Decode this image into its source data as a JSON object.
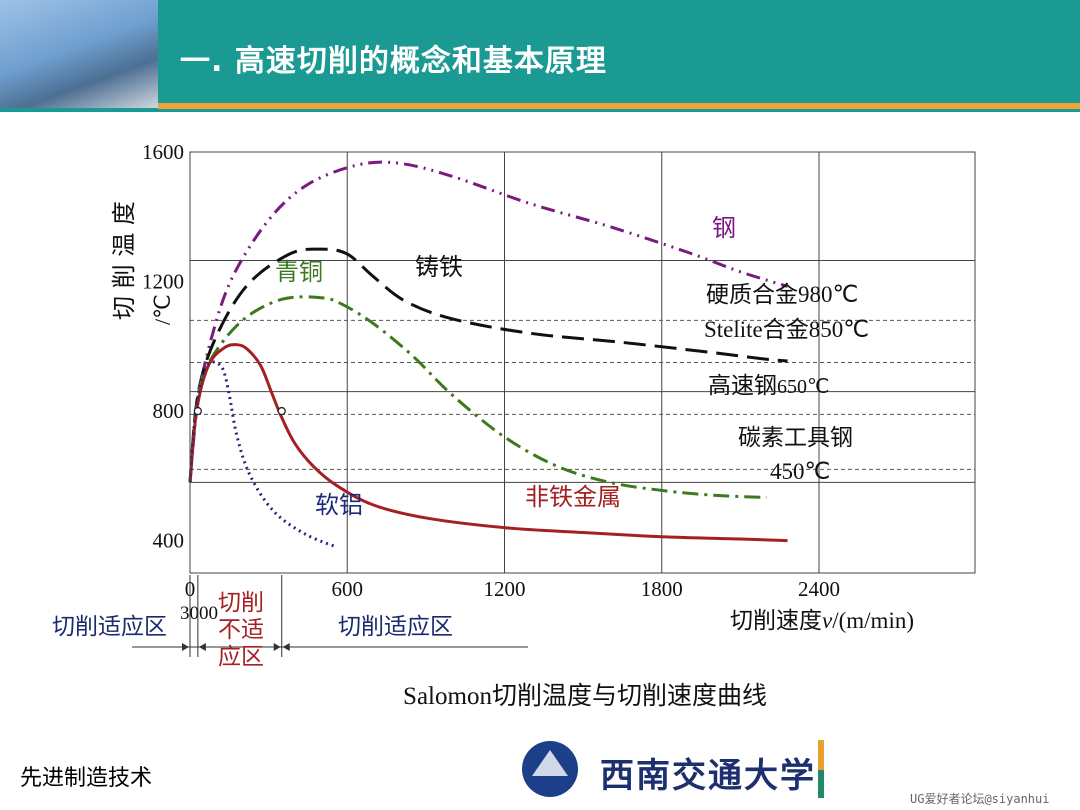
{
  "header": {
    "title": "一. 高速切削的概念和基本原理",
    "brand_color": "#1b9a93",
    "accent_color": "#f0a33a"
  },
  "chart_data": {
    "type": "line",
    "caption": "Salomon切削温度与切削速度曲线",
    "xlabel_text": "切削速度",
    "xlabel_var": "v",
    "xlabel_unit": "/(m/min)",
    "ylabel_text": "切 削 温 度",
    "ylabel_unit": "/℃",
    "xlim": [
      0,
      2400
    ],
    "ylim": [
      300,
      1600
    ],
    "x_ticks": [
      {
        "v": 0,
        "label": "0"
      },
      {
        "v": 600,
        "label": "600"
      },
      {
        "v": 1200,
        "label": "1200"
      },
      {
        "v": 1800,
        "label": "1800"
      },
      {
        "v": 2400,
        "label": "2400"
      }
    ],
    "x_extra_label": "3000",
    "y_ticks": [
      {
        "v": 1600,
        "label": "1600"
      },
      {
        "v": 1200,
        "label": "1200"
      },
      {
        "v": 800,
        "label": "800"
      },
      {
        "v": 400,
        "label": "400"
      }
    ],
    "grid": true,
    "series": [
      {
        "name": "钢",
        "color": "#7a1a80",
        "dash": "14 6 2 6 2 6",
        "x": [
          0,
          30,
          80,
          160,
          300,
          450,
          640,
          800,
          1000,
          1300,
          1600,
          1900,
          2100,
          2280
        ],
        "y": [
          580,
          830,
          1020,
          1210,
          1390,
          1500,
          1560,
          1565,
          1525,
          1440,
          1370,
          1290,
          1230,
          1185
        ]
      },
      {
        "name": "铸铁",
        "color": "#111111",
        "dash": "22 9",
        "x": [
          0,
          30,
          100,
          220,
          380,
          500,
          600,
          700,
          820,
          1000,
          1300,
          1650,
          2000,
          2200,
          2280
        ],
        "y": [
          580,
          850,
          1030,
          1190,
          1285,
          1300,
          1285,
          1215,
          1140,
          1085,
          1040,
          1012,
          980,
          960,
          955
        ]
      },
      {
        "name": "青铜",
        "color": "#3d7a1e",
        "dash": "16 6 3 6",
        "x": [
          0,
          30,
          80,
          200,
          350,
          500,
          580,
          700,
          850,
          1000,
          1200,
          1400,
          1600,
          1800,
          2000,
          2200
        ],
        "y": [
          580,
          840,
          960,
          1080,
          1145,
          1150,
          1130,
          1070,
          970,
          850,
          720,
          630,
          580,
          555,
          540,
          533
        ]
      },
      {
        "name": "非铁金属",
        "color": "#a52020",
        "dash": "",
        "x": [
          0,
          25,
          70,
          130,
          180,
          220,
          270,
          310,
          350,
          400,
          470,
          560,
          700,
          900,
          1200,
          1500,
          1800,
          2100,
          2280
        ],
        "y": [
          580,
          800,
          940,
          995,
          1005,
          990,
          940,
          860,
          780,
          700,
          630,
          570,
          510,
          470,
          440,
          425,
          412,
          405,
          400
        ]
      },
      {
        "name": "软铝",
        "color": "#1f2b7a",
        "dash": "2 4",
        "x": [
          0,
          20,
          50,
          80,
          110,
          130,
          150,
          180,
          230,
          320,
          440,
          560
        ],
        "y": [
          580,
          790,
          920,
          950,
          945,
          920,
          850,
          720,
          600,
          490,
          420,
          380
        ]
      }
    ],
    "references": [
      {
        "label": "硬质合金",
        "temp_text": "980℃",
        "y": 1080
      },
      {
        "label": "Stelite合金",
        "temp_text": "850℃",
        "y": 950
      },
      {
        "label": "高速钢",
        "temp_text": "650℃",
        "y": 790
      },
      {
        "label": "碳素工具钢",
        "temp_text": "450℃",
        "y": 620
      }
    ],
    "solid_hlines": [
      1265,
      860,
      580
    ],
    "zones": {
      "left": "切削适应区",
      "middle": [
        "切削",
        "不适",
        "应区"
      ],
      "right": "切削适应区"
    }
  },
  "footer": {
    "course": "先进制造技术",
    "university": "西南交通大学",
    "watermark": "UG爱好者论坛@siyanhui"
  }
}
